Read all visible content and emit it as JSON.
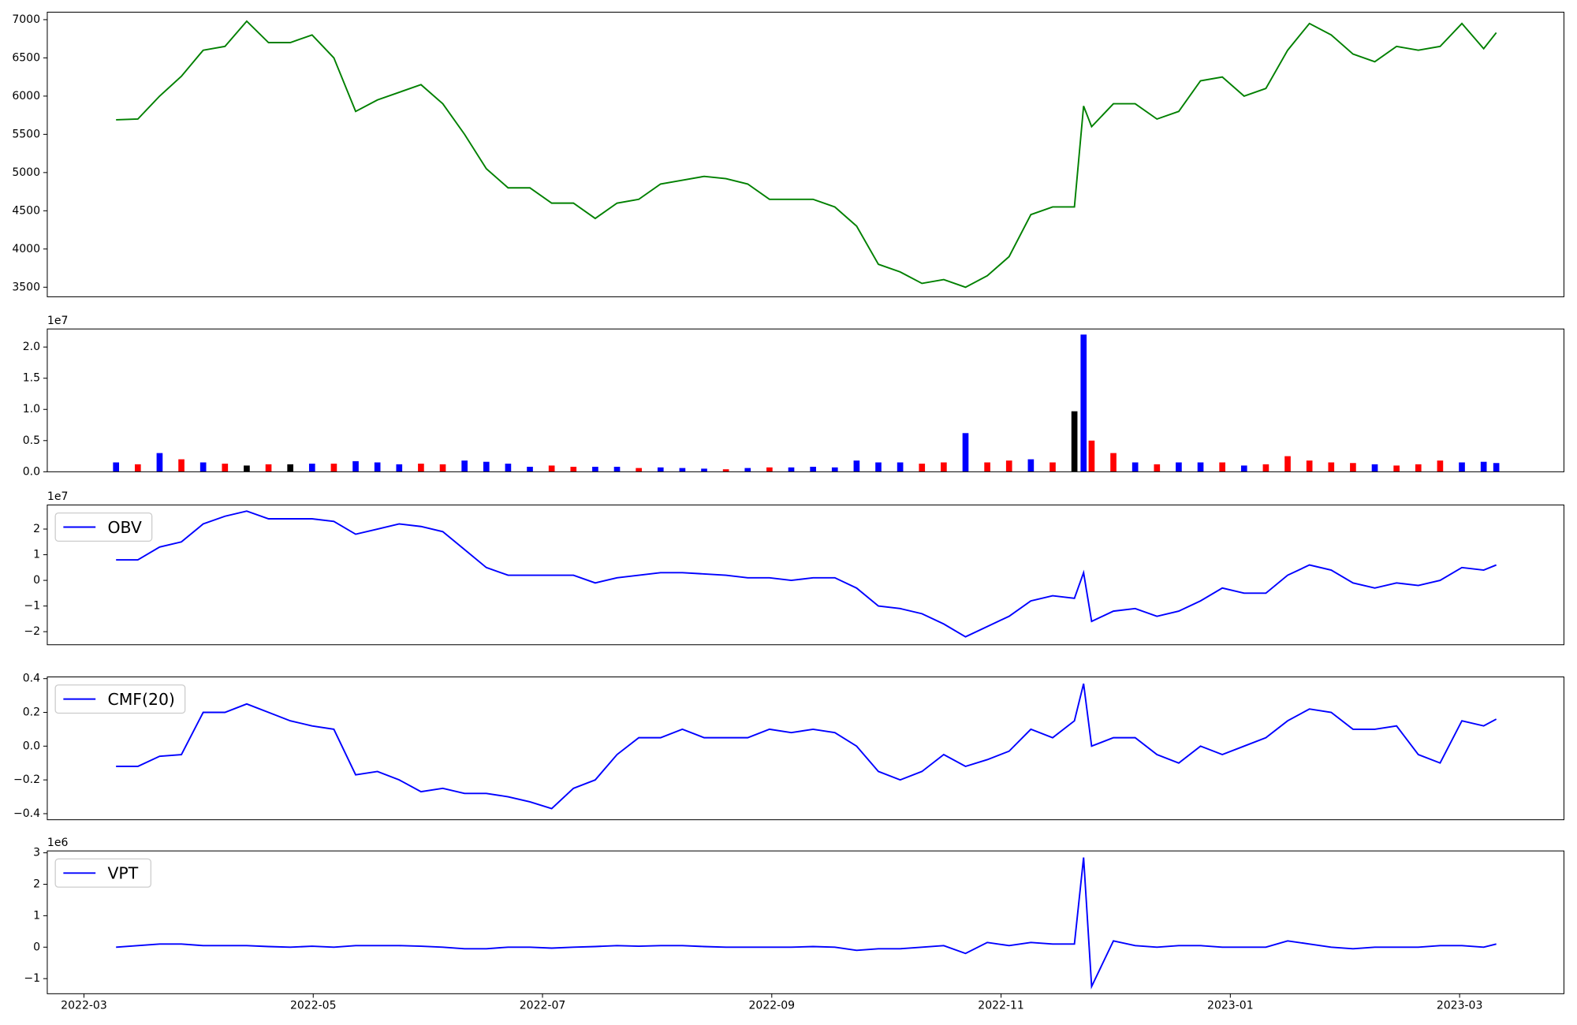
{
  "chart_data": [
    {
      "type": "line",
      "ylim": [
        3375,
        7098
      ],
      "yticks": [
        3500,
        4000,
        4500,
        5000,
        5500,
        6000,
        6500,
        7000
      ],
      "series": [
        {
          "color": "#008000",
          "values": [
            5690,
            5700,
            6000,
            6260,
            6600,
            6650,
            6980,
            6700,
            6700,
            6800,
            6500,
            5800,
            5950,
            6050,
            6150,
            5900,
            5500,
            5050,
            4800,
            4800,
            4600,
            4600,
            4400,
            4600,
            4650,
            4850,
            4900,
            4950,
            4920,
            4850,
            4650,
            4650,
            4650,
            4550,
            4300,
            3800,
            3700,
            3550,
            3600,
            3500,
            3650,
            3900,
            4450,
            4550,
            4550,
            5870,
            5600,
            5900,
            5900,
            5700,
            5800,
            6200,
            6250,
            6000,
            6100,
            6600,
            6950,
            6800,
            6550,
            6450,
            6650,
            6600,
            6650,
            6950,
            6620,
            6830
          ]
        }
      ]
    },
    {
      "type": "bar",
      "offset_label": "1e7",
      "ylim": [
        0,
        2.29
      ],
      "yticks": [
        {
          "value": 0,
          "label": "0.0"
        },
        {
          "value": 0.5,
          "label": "0.5"
        },
        {
          "value": 1,
          "label": "1.0"
        },
        {
          "value": 1.5,
          "label": "1.5"
        },
        {
          "value": 2,
          "label": "2.0"
        }
      ],
      "values": [
        0.15,
        0.12,
        0.3,
        0.2,
        0.15,
        0.13,
        0.1,
        0.12,
        0.12,
        0.13,
        0.13,
        0.17,
        0.15,
        0.12,
        0.13,
        0.12,
        0.18,
        0.16,
        0.13,
        0.08,
        0.1,
        0.08,
        0.08,
        0.08,
        0.06,
        0.07,
        0.06,
        0.05,
        0.04,
        0.06,
        0.07,
        0.07,
        0.08,
        0.07,
        0.18,
        0.15,
        0.15,
        0.13,
        0.15,
        0.62,
        0.15,
        0.18,
        0.2,
        0.15,
        0.97,
        2.2,
        0.5,
        0.3,
        0.15,
        0.12,
        0.15,
        0.15,
        0.15,
        0.1,
        0.12,
        0.25,
        0.18,
        0.15,
        0.14,
        0.12,
        0.1,
        0.12,
        0.18,
        0.15,
        0.16,
        0.14
      ],
      "colors": [
        "#0000ff",
        "#ff0000",
        "#0000ff",
        "#ff0000",
        "#0000ff",
        "#ff0000",
        "#000000",
        "#ff0000",
        "#000000",
        "#0000ff",
        "#ff0000",
        "#0000ff",
        "#0000ff",
        "#0000ff",
        "#ff0000",
        "#ff0000",
        "#0000ff",
        "#0000ff",
        "#0000ff",
        "#0000ff",
        "#ff0000",
        "#ff0000",
        "#0000ff",
        "#0000ff",
        "#ff0000",
        "#0000ff",
        "#0000ff",
        "#0000ff",
        "#ff0000",
        "#0000ff",
        "#ff0000",
        "#0000ff",
        "#0000ff",
        "#0000ff",
        "#0000ff",
        "#0000ff",
        "#0000ff",
        "#ff0000",
        "#ff0000",
        "#0000ff",
        "#ff0000",
        "#ff0000",
        "#0000ff",
        "#ff0000",
        "#000000",
        "#0000ff",
        "#ff0000",
        "#ff0000",
        "#0000ff",
        "#ff0000",
        "#0000ff",
        "#0000ff",
        "#ff0000",
        "#0000ff",
        "#ff0000",
        "#ff0000",
        "#ff0000",
        "#ff0000",
        "#ff0000",
        "#0000ff",
        "#ff0000",
        "#ff0000",
        "#ff0000",
        "#0000ff",
        "#0000ff",
        "#0000ff"
      ]
    },
    {
      "type": "line",
      "offset_label": "1e7",
      "ylim": [
        -2.51,
        2.94
      ],
      "yticks": [
        {
          "value": -2,
          "label": "−2"
        },
        {
          "value": -1,
          "label": "−1"
        },
        0,
        1,
        2
      ],
      "legend": "upper left",
      "series": [
        {
          "name": "OBV",
          "color": "#0000ff",
          "values": [
            0.8,
            0.8,
            1.3,
            1.5,
            2.2,
            2.5,
            2.7,
            2.4,
            2.4,
            2.4,
            2.3,
            1.8,
            2.0,
            2.2,
            2.1,
            1.9,
            1.2,
            0.5,
            0.2,
            0.2,
            0.2,
            0.2,
            -0.1,
            0.1,
            0.2,
            0.3,
            0.3,
            0.25,
            0.2,
            0.1,
            0.1,
            0.0,
            0.1,
            0.1,
            -0.3,
            -1.0,
            -1.1,
            -1.3,
            -1.7,
            -2.2,
            -1.8,
            -1.4,
            -0.8,
            -0.6,
            -0.7,
            0.3,
            -1.6,
            -1.2,
            -1.1,
            -1.4,
            -1.2,
            -0.8,
            -0.3,
            -0.5,
            -0.5,
            0.2,
            0.6,
            0.4,
            -0.1,
            -0.3,
            -0.1,
            -0.2,
            0.0,
            0.5,
            0.4,
            0.6
          ]
        }
      ]
    },
    {
      "type": "line",
      "ylim": [
        -0.436,
        0.41
      ],
      "yticks": [
        {
          "value": -0.4,
          "label": "−0.4"
        },
        {
          "value": -0.2,
          "label": "−0.2"
        },
        {
          "value": 0,
          "label": "0.0"
        },
        0.2,
        0.4
      ],
      "legend": "upper left",
      "series": [
        {
          "name": "CMF(20)",
          "color": "#0000ff",
          "values": [
            -0.12,
            -0.12,
            -0.06,
            -0.05,
            0.2,
            0.2,
            0.25,
            0.2,
            0.15,
            0.12,
            0.1,
            -0.17,
            -0.15,
            -0.2,
            -0.27,
            -0.25,
            -0.28,
            -0.28,
            -0.3,
            -0.33,
            -0.37,
            -0.25,
            -0.2,
            -0.05,
            0.05,
            0.05,
            0.1,
            0.05,
            0.05,
            0.05,
            0.1,
            0.08,
            0.1,
            0.08,
            0.0,
            -0.15,
            -0.2,
            -0.15,
            -0.05,
            -0.12,
            -0.08,
            -0.03,
            0.1,
            0.05,
            0.15,
            0.37,
            0.0,
            0.05,
            0.05,
            -0.05,
            -0.1,
            0.0,
            -0.05,
            0.0,
            0.05,
            0.15,
            0.22,
            0.2,
            0.1,
            0.1,
            0.12,
            -0.05,
            -0.1,
            0.15,
            0.12,
            0.16
          ]
        }
      ]
    },
    {
      "type": "line",
      "offset_label": "1e6",
      "ylim": [
        -1.48,
        3.06
      ],
      "yticks": [
        {
          "value": -1,
          "label": "−1"
        },
        0,
        1,
        2,
        3
      ],
      "legend": "upper left",
      "xlim": [
        -0.32,
        12.91
      ],
      "xticks": [
        {
          "value": 0,
          "label": "2022-03"
        },
        {
          "value": 2,
          "label": "2022-05"
        },
        {
          "value": 4,
          "label": "2022-07"
        },
        {
          "value": 6,
          "label": "2022-09"
        },
        {
          "value": 8,
          "label": "2022-11"
        },
        {
          "value": 10,
          "label": "2023-01"
        },
        {
          "value": 12,
          "label": "2023-03"
        }
      ],
      "x": [
        0.28,
        0.47,
        0.66,
        0.85,
        1.04,
        1.23,
        1.42,
        1.61,
        1.8,
        1.99,
        2.18,
        2.37,
        2.56,
        2.75,
        2.94,
        3.13,
        3.32,
        3.51,
        3.7,
        3.89,
        4.08,
        4.27,
        4.46,
        4.65,
        4.84,
        5.03,
        5.22,
        5.41,
        5.6,
        5.79,
        5.98,
        6.17,
        6.36,
        6.55,
        6.74,
        6.93,
        7.12,
        7.31,
        7.5,
        7.69,
        7.88,
        8.07,
        8.26,
        8.45,
        8.64,
        8.72,
        8.79,
        8.98,
        9.17,
        9.36,
        9.55,
        9.74,
        9.93,
        10.12,
        10.31,
        10.5,
        10.69,
        10.88,
        11.07,
        11.26,
        11.45,
        11.64,
        11.83,
        12.02,
        12.21,
        12.32
      ],
      "series": [
        {
          "name": "VPT",
          "color": "#0000ff",
          "values": [
            0,
            0.05,
            0.1,
            0.1,
            0.05,
            0.05,
            0.05,
            0.02,
            0,
            0.03,
            0,
            0.05,
            0.05,
            0.05,
            0.03,
            0,
            -0.05,
            -0.05,
            0,
            0,
            -0.03,
            0,
            0.02,
            0.05,
            0.03,
            0.05,
            0.05,
            0.02,
            0,
            0,
            0,
            0,
            0.02,
            0,
            -0.1,
            -0.05,
            -0.05,
            0,
            0.05,
            -0.2,
            0.15,
            0.05,
            0.15,
            0.1,
            0.1,
            2.85,
            -1.25,
            0.2,
            0.05,
            0,
            0.05,
            0.05,
            0,
            0,
            0,
            0.2,
            0.1,
            0,
            -0.05,
            0,
            0,
            0,
            0.05,
            0.05,
            0,
            0.1
          ]
        }
      ]
    }
  ]
}
